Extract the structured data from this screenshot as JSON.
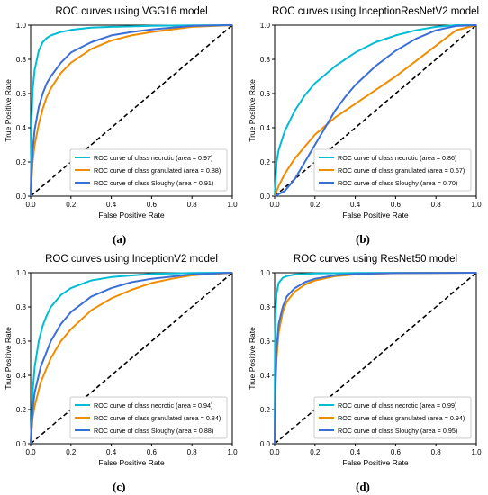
{
  "chart_data": [
    {
      "type": "line",
      "title": "ROC curves using VGG16 model",
      "xlabel": "False Positive Rate",
      "ylabel": "True Positive Rate",
      "xlim": [
        0,
        1
      ],
      "ylim": [
        0,
        1
      ],
      "xticks": [
        "0.0",
        "0.2",
        "0.4",
        "0.6",
        "0.8",
        "1.0"
      ],
      "yticks": [
        "0.0",
        "0.2",
        "0.4",
        "0.6",
        "0.8",
        "1.0"
      ],
      "legend_position": "bottom-right",
      "caption": "(a)",
      "series": [
        {
          "name": "ROC curve of class necrotic (area = 0.97)",
          "color": "#00bcd4",
          "x": [
            0,
            0.005,
            0.01,
            0.02,
            0.04,
            0.06,
            0.08,
            0.1,
            0.15,
            0.2,
            0.3,
            0.4,
            0.6,
            0.8,
            1.0
          ],
          "y": [
            0,
            0.45,
            0.62,
            0.74,
            0.85,
            0.9,
            0.925,
            0.94,
            0.96,
            0.972,
            0.985,
            0.99,
            0.996,
            0.999,
            1.0
          ]
        },
        {
          "name": "ROC curve of class granulated (area = 0.88)",
          "color": "#f08c00",
          "x": [
            0,
            0.01,
            0.02,
            0.04,
            0.06,
            0.08,
            0.1,
            0.15,
            0.2,
            0.3,
            0.4,
            0.5,
            0.6,
            0.8,
            1.0
          ],
          "y": [
            0,
            0.2,
            0.3,
            0.42,
            0.51,
            0.58,
            0.63,
            0.72,
            0.78,
            0.86,
            0.91,
            0.94,
            0.96,
            0.99,
            1.0
          ]
        },
        {
          "name": "ROC curve of class Sloughy (area = 0.91)",
          "color": "#3a6fd8",
          "x": [
            0,
            0.01,
            0.02,
            0.04,
            0.06,
            0.08,
            0.1,
            0.15,
            0.2,
            0.3,
            0.4,
            0.5,
            0.6,
            0.8,
            1.0
          ],
          "y": [
            0,
            0.27,
            0.39,
            0.52,
            0.6,
            0.66,
            0.7,
            0.78,
            0.84,
            0.9,
            0.94,
            0.96,
            0.975,
            0.995,
            1.0
          ]
        }
      ]
    },
    {
      "type": "line",
      "title": "ROC curves using InceptionResNetV2 model",
      "xlabel": "False Positive Rate",
      "ylabel": "True Positive Rate",
      "xlim": [
        0,
        1
      ],
      "ylim": [
        0,
        1
      ],
      "xticks": [
        "0.0",
        "0.2",
        "0.4",
        "0.6",
        "0.8",
        "1.0"
      ],
      "yticks": [
        "0.0",
        "0.2",
        "0.4",
        "0.6",
        "0.8",
        "1.0"
      ],
      "legend_position": "bottom-right",
      "caption": "(b)",
      "series": [
        {
          "name": "ROC curve of class necrotic (area = 0.86)",
          "color": "#00bcd4",
          "x": [
            0,
            0.01,
            0.02,
            0.05,
            0.1,
            0.15,
            0.2,
            0.3,
            0.4,
            0.5,
            0.6,
            0.7,
            0.8,
            0.9,
            1.0
          ],
          "y": [
            0,
            0.2,
            0.27,
            0.38,
            0.5,
            0.59,
            0.66,
            0.76,
            0.84,
            0.9,
            0.94,
            0.97,
            0.99,
            1.0,
            1.0
          ]
        },
        {
          "name": "ROC curve of class granulated (area = 0.67)",
          "color": "#f08c00",
          "x": [
            0,
            0.02,
            0.05,
            0.1,
            0.2,
            0.3,
            0.4,
            0.5,
            0.6,
            0.7,
            0.8,
            0.9,
            1.0
          ],
          "y": [
            0,
            0.06,
            0.13,
            0.22,
            0.36,
            0.46,
            0.54,
            0.62,
            0.7,
            0.79,
            0.88,
            0.97,
            1.0
          ]
        },
        {
          "name": "ROC curve of class Sloughy (area = 0.70)",
          "color": "#3a6fd8",
          "x": [
            0,
            0.05,
            0.1,
            0.15,
            0.2,
            0.25,
            0.3,
            0.35,
            0.4,
            0.5,
            0.6,
            0.7,
            0.8,
            0.9,
            1.0
          ],
          "y": [
            0,
            0.03,
            0.1,
            0.2,
            0.3,
            0.4,
            0.5,
            0.58,
            0.65,
            0.76,
            0.85,
            0.92,
            0.97,
            0.995,
            1.0
          ]
        }
      ]
    },
    {
      "type": "line",
      "title": "ROC curves using InceptionV2 model",
      "xlabel": "False Positive Rate",
      "ylabel": "True Positive Rate",
      "xlim": [
        0,
        1
      ],
      "ylim": [
        0,
        1
      ],
      "xticks": [
        "0.0",
        "0.2",
        "0.4",
        "0.6",
        "0.8",
        "1.0"
      ],
      "yticks": [
        "0.0",
        "0.2",
        "0.4",
        "0.6",
        "0.8",
        "1.0"
      ],
      "legend_position": "bottom-right",
      "caption": "(c)",
      "series": [
        {
          "name": "ROC curve of class necrotic (area = 0.94)",
          "color": "#00bcd4",
          "x": [
            0,
            0.01,
            0.02,
            0.04,
            0.06,
            0.08,
            0.1,
            0.15,
            0.2,
            0.3,
            0.4,
            0.6,
            0.8,
            1.0
          ],
          "y": [
            0,
            0.3,
            0.45,
            0.6,
            0.69,
            0.75,
            0.8,
            0.87,
            0.91,
            0.955,
            0.975,
            0.993,
            0.999,
            1.0
          ]
        },
        {
          "name": "ROC curve of class granulated (area = 0.84)",
          "color": "#f08c00",
          "x": [
            0,
            0.01,
            0.02,
            0.05,
            0.1,
            0.15,
            0.2,
            0.3,
            0.4,
            0.5,
            0.6,
            0.7,
            0.8,
            1.0
          ],
          "y": [
            0,
            0.15,
            0.22,
            0.36,
            0.5,
            0.6,
            0.67,
            0.78,
            0.85,
            0.9,
            0.94,
            0.965,
            0.985,
            1.0
          ]
        },
        {
          "name": "ROC curve of class Sloughy (area = 0.88)",
          "color": "#3a6fd8",
          "x": [
            0,
            0.01,
            0.02,
            0.05,
            0.1,
            0.15,
            0.2,
            0.3,
            0.4,
            0.5,
            0.6,
            0.8,
            1.0
          ],
          "y": [
            0,
            0.2,
            0.3,
            0.45,
            0.6,
            0.7,
            0.77,
            0.86,
            0.91,
            0.945,
            0.965,
            0.99,
            1.0
          ]
        }
      ]
    },
    {
      "type": "line",
      "title": "ROC curves using ResNet50 model",
      "xlabel": "False Positive Rate",
      "ylabel": "True Positive Rate",
      "xlim": [
        0,
        1
      ],
      "ylim": [
        0,
        1
      ],
      "xticks": [
        "0.0",
        "0.2",
        "0.4",
        "0.6",
        "0.8",
        "1.0"
      ],
      "yticks": [
        "0.0",
        "0.2",
        "0.4",
        "0.6",
        "0.8",
        "1.0"
      ],
      "legend_position": "bottom-right",
      "caption": "(d)",
      "series": [
        {
          "name": "ROC curve of class necrotic (area = 0.99)",
          "color": "#00bcd4",
          "x": [
            0,
            0.002,
            0.005,
            0.01,
            0.02,
            0.04,
            0.06,
            0.1,
            0.2,
            0.4,
            1.0
          ],
          "y": [
            0,
            0.6,
            0.78,
            0.88,
            0.94,
            0.97,
            0.98,
            0.99,
            0.996,
            0.999,
            1.0
          ]
        },
        {
          "name": "ROC curve of class granulated (area = 0.94)",
          "color": "#f08c00",
          "x": [
            0,
            0.005,
            0.01,
            0.02,
            0.04,
            0.06,
            0.1,
            0.15,
            0.2,
            0.3,
            0.4,
            0.6,
            1.0
          ],
          "y": [
            0,
            0.35,
            0.5,
            0.65,
            0.77,
            0.83,
            0.89,
            0.93,
            0.955,
            0.98,
            0.99,
            0.998,
            1.0
          ]
        },
        {
          "name": "ROC curve of class Sloughy (area = 0.95)",
          "color": "#3a6fd8",
          "x": [
            0,
            0.005,
            0.01,
            0.02,
            0.04,
            0.06,
            0.1,
            0.15,
            0.2,
            0.3,
            0.4,
            0.6,
            1.0
          ],
          "y": [
            0,
            0.4,
            0.56,
            0.7,
            0.8,
            0.86,
            0.91,
            0.945,
            0.965,
            0.985,
            0.993,
            0.998,
            1.0
          ]
        }
      ]
    }
  ]
}
